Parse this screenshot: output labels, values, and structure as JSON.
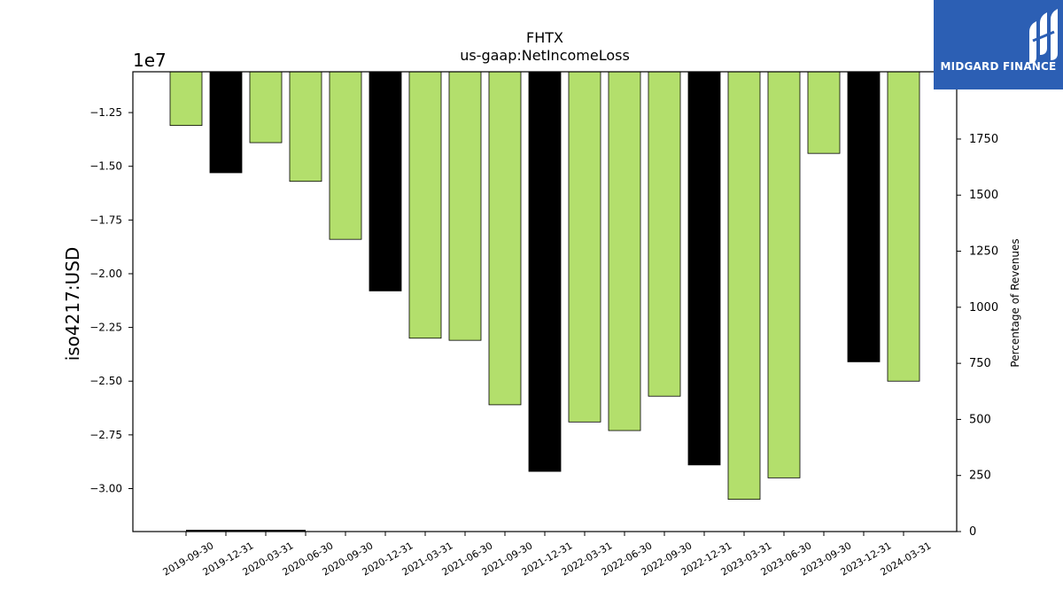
{
  "brand": {
    "logo_text": "MIDGARD FINANCE",
    "logo_bg": "#2c5fb4"
  },
  "chart_data": {
    "type": "bar",
    "title": "FHTX",
    "subtitle": "us-gaap:NetIncomeLoss",
    "ylabel": "iso4217:USD",
    "y_offset_label": "1e7",
    "y2label": "Percentage of Revenues",
    "categories": [
      "2019-09-30",
      "2019-12-31",
      "2020-03-31",
      "2020-06-30",
      "2020-09-30",
      "2020-12-31",
      "2021-03-31",
      "2021-06-30",
      "2021-09-30",
      "2021-12-31",
      "2022-03-31",
      "2022-06-30",
      "2022-09-30",
      "2022-12-31",
      "2023-03-31",
      "2023-06-30",
      "2023-09-30",
      "2023-12-31",
      "2024-03-31"
    ],
    "values": [
      -13100000,
      -15300000,
      -13900000,
      -15700000,
      -18400000,
      -20800000,
      -23000000,
      -23100000,
      -26100000,
      -29200000,
      -26900000,
      -27300000,
      -25700000,
      -28900000,
      -30500000,
      -29500000,
      -14400000,
      -24100000,
      -25000000
    ],
    "bar_colors": [
      "#b3df6c",
      "#000000",
      "#b3df6c",
      "#b3df6c",
      "#b3df6c",
      "#000000",
      "#b3df6c",
      "#b3df6c",
      "#b3df6c",
      "#000000",
      "#b3df6c",
      "#b3df6c",
      "#b3df6c",
      "#000000",
      "#b3df6c",
      "#b3df6c",
      "#b3df6c",
      "#000000",
      "#b3df6c"
    ],
    "ylim": [
      -32000000,
      -10600000
    ],
    "yticks": [
      -12500000,
      -15000000,
      -17500000,
      -20000000,
      -22500000,
      -25000000,
      -27500000,
      -30000000
    ],
    "ytick_labels": [
      "−1.25",
      "−1.50",
      "−1.75",
      "−2.00",
      "−2.25",
      "−2.50",
      "−2.75",
      "−3.00"
    ],
    "y2lim": [
      0,
      2050
    ],
    "y2ticks": [
      0,
      250,
      500,
      750,
      1000,
      1250,
      1500,
      1750
    ],
    "y2tick_labels": [
      "0",
      "250",
      "500",
      "750",
      "1000",
      "1250",
      "1500",
      "1750"
    ],
    "percentage_series": {
      "name": "",
      "categories": [
        "2019-09-30",
        "2019-12-31",
        "2020-03-31",
        "2020-06-30"
      ],
      "values": [
        4,
        4,
        4,
        4
      ]
    },
    "grid": false
  }
}
